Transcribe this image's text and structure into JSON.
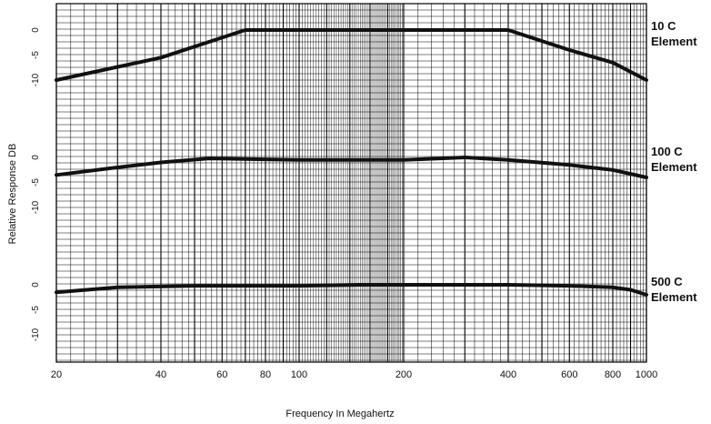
{
  "chart_data": {
    "type": "line",
    "xlabel": "Frequency In Megahertz",
    "ylabel": "Relative Response DB",
    "x_scale": "log",
    "xlim": [
      20,
      1000
    ],
    "x_ticks": [
      20,
      40,
      60,
      80,
      100,
      200,
      400,
      600,
      800,
      1000
    ],
    "x_tick_labels": [
      "20",
      "40",
      "60",
      "80",
      "100",
      "200",
      "400",
      "600",
      "800",
      "1000"
    ],
    "grid": true,
    "panels": [
      {
        "label_line1": "10 C",
        "label_line2": "Element",
        "y_ticks": [
          0,
          -5,
          -10
        ],
        "y_tick_labels": [
          "0",
          "-5",
          "-10"
        ],
        "x": [
          20,
          40,
          70,
          100,
          200,
          400,
          600,
          800,
          1000
        ],
        "y": [
          -10,
          -5.5,
          0,
          0,
          0,
          0,
          -4,
          -6.5,
          -10
        ]
      },
      {
        "label_line1": "100 C",
        "label_line2": "Element",
        "y_ticks": [
          0,
          -5,
          -10
        ],
        "y_tick_labels": [
          "0",
          "-5",
          "-10"
        ],
        "x": [
          20,
          30,
          40,
          55,
          100,
          200,
          300,
          400,
          600,
          800,
          1000
        ],
        "y": [
          -3.5,
          -2,
          -1,
          -0.2,
          -0.5,
          -0.5,
          0,
          -0.5,
          -1.5,
          -2.5,
          -4
        ]
      },
      {
        "label_line1": "500 C",
        "label_line2": "Element",
        "y_ticks": [
          0,
          -5,
          -10
        ],
        "y_tick_labels": [
          "0",
          "-5",
          "-10"
        ],
        "x": [
          20,
          30,
          50,
          100,
          150,
          200,
          400,
          600,
          800,
          900,
          1000
        ],
        "y": [
          -1.5,
          -0.5,
          -0.2,
          -0.2,
          0,
          0,
          0,
          -0.2,
          -0.5,
          -1,
          -2
        ]
      }
    ]
  }
}
